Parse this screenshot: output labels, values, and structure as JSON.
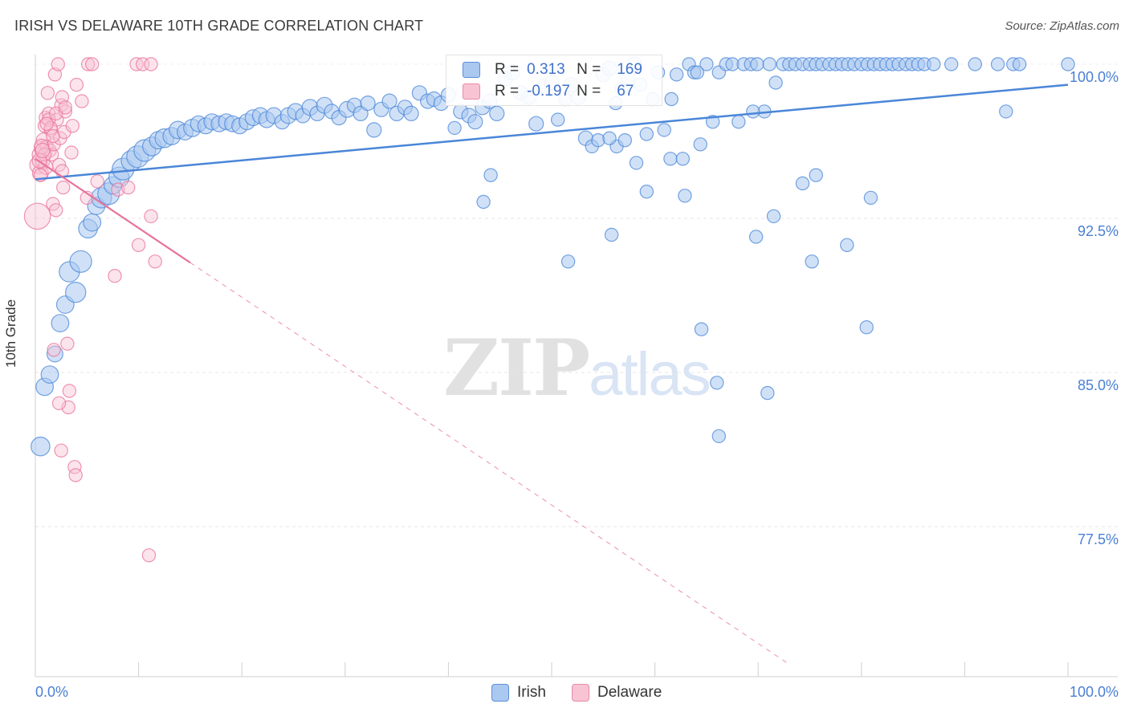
{
  "title": "IRISH VS DELAWARE 10TH GRADE CORRELATION CHART",
  "source": "Source: ZipAtlas.com",
  "watermark": {
    "part1": "ZIP",
    "part2": "atlas"
  },
  "legend_top": {
    "r_label": "R =",
    "n_label": "N =",
    "rows": [
      {
        "name": "Irish",
        "r": "0.313",
        "n": "169",
        "fill": "#aac8f0",
        "stroke": "#5b8fdc"
      },
      {
        "name": "Delaware",
        "r": "-0.197",
        "n": "67",
        "fill": "#f8c4d4",
        "stroke": "#e98aa8"
      }
    ]
  },
  "chart_data": {
    "type": "scatter",
    "title": "IRISH VS DELAWARE 10TH GRADE CORRELATION CHART",
    "xlabel": "",
    "ylabel": "10th Grade",
    "xlim": [
      0,
      100
    ],
    "ylim": [
      70.8,
      100.8
    ],
    "y_ticks": [
      {
        "value": 100.0,
        "label": "100.0%"
      },
      {
        "value": 92.5,
        "label": "92.5%"
      },
      {
        "value": 85.0,
        "label": "85.0%"
      },
      {
        "value": 77.5,
        "label": "77.5%"
      }
    ],
    "x_ticks": [
      {
        "value": 0,
        "label": "0.0%"
      },
      {
        "value": 100,
        "label": "100.0%"
      }
    ],
    "grid": true,
    "series": [
      {
        "name": "Irish",
        "color": "#4a86d8",
        "fill": "#aac8f0",
        "trend": {
          "x1": 0,
          "y1": 94.4,
          "x2": 100,
          "y2": 99.0,
          "dash_from_x": null
        },
        "points": [
          [
            0.5,
            81.4,
            1.3
          ],
          [
            0.9,
            84.3,
            1.2
          ],
          [
            1.4,
            84.9,
            1.2
          ],
          [
            1.9,
            85.9,
            1.1
          ],
          [
            2.4,
            87.4,
            1.2
          ],
          [
            2.9,
            88.3,
            1.2
          ],
          [
            3.3,
            89.9,
            1.4
          ],
          [
            3.9,
            88.9,
            1.4
          ],
          [
            4.4,
            90.4,
            1.5
          ],
          [
            5.1,
            92.0,
            1.3
          ],
          [
            5.5,
            92.3,
            1.2
          ],
          [
            5.9,
            93.1,
            1.2
          ],
          [
            6.4,
            93.5,
            1.4
          ],
          [
            7.1,
            93.7,
            1.5
          ],
          [
            7.5,
            94.1,
            1.2
          ],
          [
            8.1,
            94.5,
            1.4
          ],
          [
            8.5,
            94.9,
            1.5
          ],
          [
            9.3,
            95.3,
            1.4
          ],
          [
            9.9,
            95.5,
            1.5
          ],
          [
            10.6,
            95.8,
            1.5
          ],
          [
            11.3,
            96.0,
            1.3
          ],
          [
            11.9,
            96.3,
            1.2
          ],
          [
            12.5,
            96.4,
            1.3
          ],
          [
            13.2,
            96.5,
            1.2
          ],
          [
            13.8,
            96.8,
            1.2
          ],
          [
            14.5,
            96.7,
            1.1
          ],
          [
            15.2,
            96.9,
            1.2
          ],
          [
            15.8,
            97.1,
            1.1
          ],
          [
            16.5,
            97.0,
            1.1
          ],
          [
            17.1,
            97.2,
            1.1
          ],
          [
            17.8,
            97.1,
            1.1
          ],
          [
            18.5,
            97.2,
            1.1
          ],
          [
            19.1,
            97.1,
            1.1
          ],
          [
            19.8,
            97.0,
            1.1
          ],
          [
            20.5,
            97.2,
            1.1
          ],
          [
            21.1,
            97.4,
            1.1
          ],
          [
            21.8,
            97.5,
            1.1
          ],
          [
            22.4,
            97.3,
            1.1
          ],
          [
            23.1,
            97.5,
            1.1
          ],
          [
            23.9,
            97.2,
            1.0
          ],
          [
            24.5,
            97.5,
            1.1
          ],
          [
            25.2,
            97.7,
            1.1
          ],
          [
            25.9,
            97.5,
            1.0
          ],
          [
            26.6,
            97.9,
            1.1
          ],
          [
            27.3,
            97.6,
            1.0
          ],
          [
            28.0,
            98.0,
            1.1
          ],
          [
            28.7,
            97.7,
            1.0
          ],
          [
            29.4,
            97.4,
            1.0
          ],
          [
            30.2,
            97.8,
            1.1
          ],
          [
            30.9,
            98.0,
            1.0
          ],
          [
            31.5,
            97.6,
            1.0
          ],
          [
            32.2,
            98.1,
            1.0
          ],
          [
            32.8,
            96.8,
            1.0
          ],
          [
            33.5,
            97.8,
            1.0
          ],
          [
            34.3,
            98.2,
            1.0
          ],
          [
            35.0,
            97.6,
            1.0
          ],
          [
            35.8,
            97.9,
            1.0
          ],
          [
            36.4,
            97.6,
            1.0
          ],
          [
            37.2,
            98.6,
            1.0
          ],
          [
            38.0,
            98.2,
            1.0
          ],
          [
            38.6,
            98.3,
            1.0
          ],
          [
            39.3,
            98.1,
            1.0
          ],
          [
            40.0,
            98.5,
            1.0
          ],
          [
            40.6,
            96.9,
            0.9
          ],
          [
            41.2,
            97.7,
            1.0
          ],
          [
            42.0,
            97.5,
            1.0
          ],
          [
            42.6,
            97.2,
            1.0
          ],
          [
            43.3,
            97.9,
            1.0
          ],
          [
            44.0,
            98.2,
            1.0
          ],
          [
            44.7,
            97.6,
            1.0
          ],
          [
            45.5,
            99.3,
            1.0
          ],
          [
            46.2,
            99.6,
            1.0
          ],
          [
            47.0,
            98.6,
            1.0
          ],
          [
            47.8,
            98.4,
            1.0
          ],
          [
            48.5,
            97.1,
            1.0
          ],
          [
            49.2,
            98.9,
            1.0
          ],
          [
            50.0,
            99.1,
            1.0
          ],
          [
            50.6,
            97.3,
            0.9
          ],
          [
            51.3,
            98.3,
            0.9
          ],
          [
            51.9,
            99.0,
            1.0
          ],
          [
            52.6,
            98.4,
            1.0
          ],
          [
            53.3,
            96.4,
            1.0
          ],
          [
            53.9,
            96.0,
            0.9
          ],
          [
            54.5,
            96.3,
            0.9
          ],
          [
            55.0,
            99.5,
            1.0
          ],
          [
            55.6,
            99.8,
            1.0
          ],
          [
            56.2,
            98.1,
            0.9
          ],
          [
            56.8,
            98.8,
            0.9
          ],
          [
            57.4,
            99.3,
            1.0
          ],
          [
            58.0,
            100.0,
            1.0
          ],
          [
            58.6,
            99.0,
            0.9
          ],
          [
            59.2,
            96.6,
            0.9
          ],
          [
            59.8,
            98.3,
            0.9
          ],
          [
            60.3,
            99.6,
            0.9
          ],
          [
            60.9,
            96.8,
            0.9
          ],
          [
            61.5,
            95.4,
            0.9
          ],
          [
            62.1,
            99.5,
            0.9
          ],
          [
            62.7,
            95.4,
            0.9
          ],
          [
            63.3,
            100.0,
            0.9
          ],
          [
            63.8,
            99.6,
            0.9
          ],
          [
            64.4,
            96.1,
            0.9
          ],
          [
            65.0,
            100.0,
            0.9
          ],
          [
            65.6,
            97.2,
            0.9
          ],
          [
            66.2,
            99.6,
            0.9
          ],
          [
            66.9,
            100.0,
            0.9
          ],
          [
            67.5,
            100.0,
            0.9
          ],
          [
            68.1,
            97.2,
            0.9
          ],
          [
            68.6,
            100.0,
            0.9
          ],
          [
            69.3,
            100.0,
            0.9
          ],
          [
            69.9,
            100.0,
            0.9
          ],
          [
            70.6,
            97.7,
            0.9
          ],
          [
            71.1,
            100.0,
            0.9
          ],
          [
            71.7,
            99.1,
            0.9
          ],
          [
            72.4,
            100.0,
            0.9
          ],
          [
            73.0,
            100.0,
            0.9
          ],
          [
            73.6,
            100.0,
            0.9
          ],
          [
            74.3,
            100.0,
            0.9
          ],
          [
            75.0,
            100.0,
            0.9
          ],
          [
            75.6,
            100.0,
            0.9
          ],
          [
            76.2,
            100.0,
            0.9
          ],
          [
            76.9,
            100.0,
            0.9
          ],
          [
            77.5,
            100.0,
            0.9
          ],
          [
            78.1,
            100.0,
            0.9
          ],
          [
            78.7,
            100.0,
            0.9
          ],
          [
            79.3,
            100.0,
            0.9
          ],
          [
            80.0,
            100.0,
            0.9
          ],
          [
            80.6,
            100.0,
            0.9
          ],
          [
            81.2,
            100.0,
            0.9
          ],
          [
            81.8,
            100.0,
            0.9
          ],
          [
            82.4,
            100.0,
            0.9
          ],
          [
            83.0,
            100.0,
            0.9
          ],
          [
            83.6,
            100.0,
            0.9
          ],
          [
            84.3,
            100.0,
            0.9
          ],
          [
            84.9,
            100.0,
            0.9
          ],
          [
            85.5,
            100.0,
            0.9
          ],
          [
            86.1,
            100.0,
            0.9
          ],
          [
            87.0,
            100.0,
            0.9
          ],
          [
            88.7,
            100.0,
            0.9
          ],
          [
            91.0,
            100.0,
            0.9
          ],
          [
            93.2,
            100.0,
            0.9
          ],
          [
            94.7,
            100.0,
            0.9
          ],
          [
            95.3,
            100.0,
            0.9
          ],
          [
            100.0,
            100.0,
            0.9
          ],
          [
            94.0,
            97.7,
            0.9
          ],
          [
            71.5,
            92.6,
            0.9
          ],
          [
            74.3,
            94.2,
            0.9
          ],
          [
            75.6,
            94.6,
            0.9
          ],
          [
            75.2,
            90.4,
            0.9
          ],
          [
            78.6,
            91.2,
            0.9
          ],
          [
            80.9,
            93.5,
            0.9
          ],
          [
            69.8,
            91.6,
            0.9
          ],
          [
            70.9,
            84.0,
            0.9
          ],
          [
            69.5,
            97.7,
            0.9
          ],
          [
            66.0,
            84.5,
            0.9
          ],
          [
            66.2,
            81.9,
            0.9
          ],
          [
            64.5,
            87.1,
            0.9
          ],
          [
            80.5,
            87.2,
            0.9
          ],
          [
            62.9,
            93.6,
            0.9
          ],
          [
            55.8,
            91.7,
            0.9
          ],
          [
            51.6,
            90.4,
            0.9
          ],
          [
            56.3,
            96.0,
            0.9
          ],
          [
            58.2,
            95.2,
            0.9
          ],
          [
            59.2,
            93.8,
            0.9
          ],
          [
            55.6,
            96.4,
            0.9
          ],
          [
            57.1,
            96.3,
            0.9
          ],
          [
            44.1,
            94.6,
            0.9
          ],
          [
            43.4,
            93.3,
            0.9
          ],
          [
            61.6,
            98.3,
            0.9
          ],
          [
            64.1,
            99.6,
            0.9
          ]
        ]
      },
      {
        "name": "Delaware",
        "color": "#e8739a",
        "fill": "#f8c4d4",
        "trend": {
          "x1": 0,
          "y1": 95.4,
          "x2": 73.0,
          "y2": 70.8,
          "dash_from_x": 15.0
        },
        "points": [
          [
            0.2,
            92.6,
            1.8
          ],
          [
            0.3,
            95.1,
            1.2
          ],
          [
            0.4,
            95.6,
            1.0
          ],
          [
            0.5,
            94.7,
            1.1
          ],
          [
            0.6,
            95.9,
            1.0
          ],
          [
            0.7,
            95.3,
            1.0
          ],
          [
            0.8,
            96.3,
            1.0
          ],
          [
            0.9,
            97.0,
            0.9
          ],
          [
            1.0,
            97.4,
            0.9
          ],
          [
            1.1,
            96.0,
            0.9
          ],
          [
            1.2,
            98.6,
            0.9
          ],
          [
            1.3,
            97.6,
            0.9
          ],
          [
            1.4,
            95.8,
            0.9
          ],
          [
            1.5,
            96.8,
            0.9
          ],
          [
            1.6,
            95.6,
            0.9
          ],
          [
            1.7,
            93.2,
            0.9
          ],
          [
            1.8,
            96.1,
            0.9
          ],
          [
            1.9,
            99.5,
            0.9
          ],
          [
            2.0,
            92.9,
            0.9
          ],
          [
            2.1,
            97.3,
            0.9
          ],
          [
            2.2,
            100.0,
            0.9
          ],
          [
            2.3,
            95.1,
            0.9
          ],
          [
            2.4,
            96.4,
            0.9
          ],
          [
            2.5,
            98.0,
            0.9
          ],
          [
            2.6,
            98.4,
            0.9
          ],
          [
            2.7,
            94.0,
            0.9
          ],
          [
            2.8,
            96.7,
            0.9
          ],
          [
            2.9,
            97.7,
            0.9
          ],
          [
            3.1,
            86.4,
            0.9
          ],
          [
            3.2,
            83.3,
            0.9
          ],
          [
            3.3,
            84.1,
            0.9
          ],
          [
            3.5,
            95.7,
            0.9
          ],
          [
            3.6,
            97.0,
            0.9
          ],
          [
            3.8,
            80.4,
            0.9
          ],
          [
            3.9,
            80.0,
            0.9
          ],
          [
            4.0,
            99.0,
            0.9
          ],
          [
            4.5,
            98.2,
            0.9
          ],
          [
            5.0,
            93.5,
            0.9
          ],
          [
            5.1,
            100.0,
            0.9
          ],
          [
            5.5,
            100.0,
            0.9
          ],
          [
            1.8,
            86.1,
            0.9
          ],
          [
            2.3,
            83.5,
            0.9
          ],
          [
            2.5,
            81.2,
            0.9
          ],
          [
            7.7,
            89.7,
            0.9
          ],
          [
            8.0,
            93.9,
            0.9
          ],
          [
            9.0,
            94.0,
            0.9
          ],
          [
            10.0,
            91.2,
            0.9
          ],
          [
            11.2,
            92.6,
            0.9
          ],
          [
            11.6,
            90.4,
            0.9
          ],
          [
            9.8,
            100.0,
            0.9
          ],
          [
            10.4,
            100.0,
            0.9
          ],
          [
            11.2,
            100.0,
            0.9
          ],
          [
            11.0,
            76.1,
            0.9
          ],
          [
            0.6,
            96.0,
            1.0
          ],
          [
            1.0,
            95.0,
            1.0
          ],
          [
            0.5,
            94.6,
            0.9
          ],
          [
            1.3,
            97.3,
            0.9
          ],
          [
            2.0,
            97.6,
            0.9
          ],
          [
            0.9,
            95.6,
            0.9
          ],
          [
            1.5,
            96.9,
            0.9
          ],
          [
            2.6,
            94.8,
            0.9
          ],
          [
            0.4,
            95.3,
            1.0
          ],
          [
            1.1,
            97.1,
            0.9
          ],
          [
            1.7,
            96.5,
            0.9
          ],
          [
            2.9,
            97.9,
            0.9
          ],
          [
            6.0,
            94.3,
            0.9
          ],
          [
            0.7,
            95.8,
            1.0
          ]
        ]
      }
    ]
  }
}
